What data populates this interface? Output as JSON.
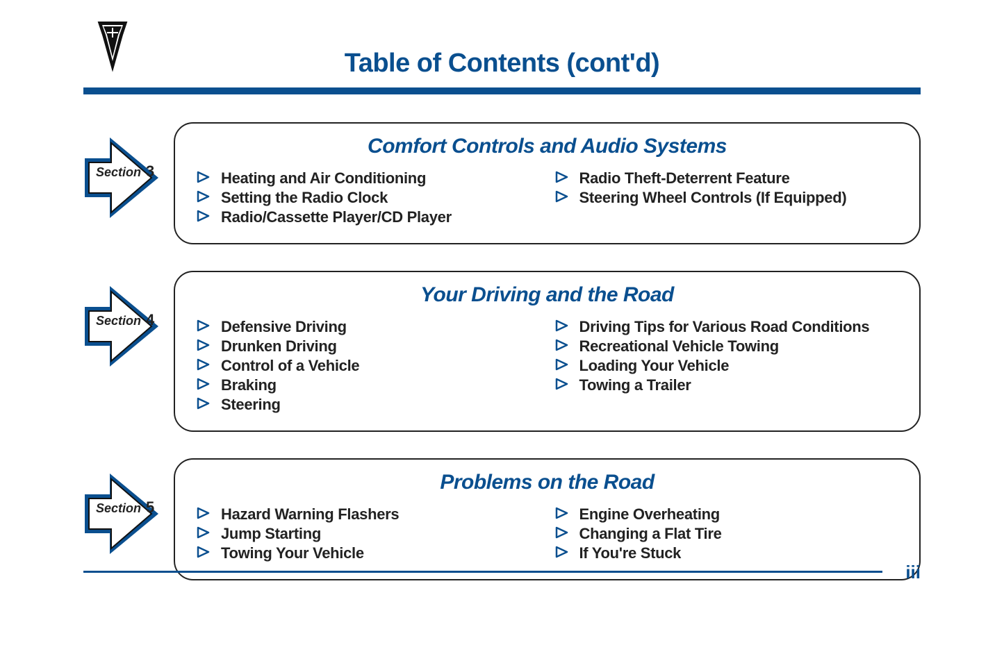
{
  "colors": {
    "brand_blue": "#0a4f8f",
    "text_dark": "#222222",
    "white": "#ffffff",
    "bullet_fill": "#ffffff",
    "bullet_stroke": "#0a4f8f"
  },
  "header": {
    "title": "Table of Contents (cont'd)"
  },
  "page_number": "iii",
  "section_label_prefix": "Section",
  "sections": [
    {
      "number": "3",
      "title": "Comfort Controls and Audio Systems",
      "left_items": [
        "Heating and Air Conditioning",
        "Setting the Radio Clock",
        "Radio/Cassette Player/CD Player"
      ],
      "right_items": [
        "Radio Theft-Deterrent Feature",
        "Steering Wheel Controls (If Equipped)"
      ]
    },
    {
      "number": "4",
      "title": "Your Driving and the Road",
      "left_items": [
        "Defensive Driving",
        "Drunken Driving",
        "Control of a Vehicle",
        "Braking",
        "Steering"
      ],
      "right_items": [
        "Driving Tips for Various Road Conditions",
        "Recreational Vehicle Towing",
        "Loading Your Vehicle",
        "Towing a Trailer"
      ]
    },
    {
      "number": "5",
      "title": "Problems on the Road",
      "left_items": [
        "Hazard Warning Flashers",
        "Jump Starting",
        "Towing Your Vehicle"
      ],
      "right_items": [
        "Engine Overheating",
        "Changing a Flat Tire",
        "If You're Stuck"
      ]
    }
  ]
}
